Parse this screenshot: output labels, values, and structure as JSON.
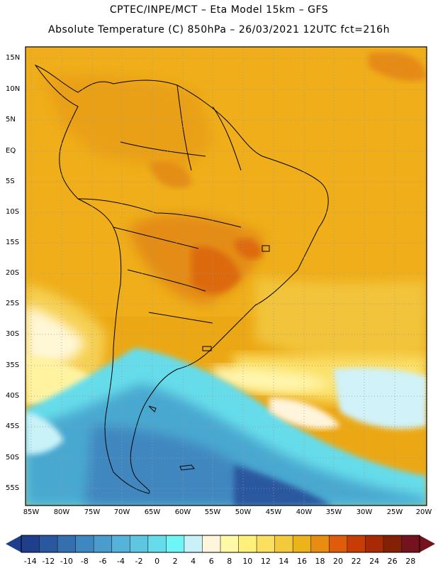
{
  "header": {
    "line1": "CPTEC/INPE/MCT –  Eta Model 15km – GFS",
    "line2": "Absolute Temperature (C) 850hPa – 26/03/2021 12UTC fct=216h"
  },
  "axes": {
    "lat_labels": [
      "15N",
      "10N",
      "5N",
      "EQ",
      "5S",
      "10S",
      "15S",
      "20S",
      "25S",
      "30S",
      "35S",
      "40S",
      "45S",
      "50S",
      "55S"
    ],
    "lon_labels": [
      "85W",
      "80W",
      "75W",
      "70W",
      "65W",
      "60W",
      "55W",
      "50W",
      "45W",
      "40W",
      "35W",
      "30W",
      "25W",
      "20W"
    ]
  },
  "colorbar": {
    "ticks": [
      "-14",
      "-12",
      "-10",
      "-8",
      "-6",
      "-4",
      "-2",
      "0",
      "2",
      "4",
      "6",
      "8",
      "10",
      "12",
      "14",
      "16",
      "18",
      "20",
      "22",
      "24",
      "26",
      "28"
    ],
    "colors": [
      "#1f3e8c",
      "#2a58a0",
      "#3470b0",
      "#3f87c0",
      "#4a9ccc",
      "#55b2d8",
      "#5ec6e0",
      "#66dcea",
      "#6ef6f6",
      "#c8f2f8",
      "#fff4dc",
      "#fff8a6",
      "#fff07a",
      "#fbe060",
      "#f3ca3c",
      "#ecb418",
      "#e88c12",
      "#de5c0a",
      "#c83c06",
      "#a82a04",
      "#842006",
      "#74121e"
    ]
  }
}
